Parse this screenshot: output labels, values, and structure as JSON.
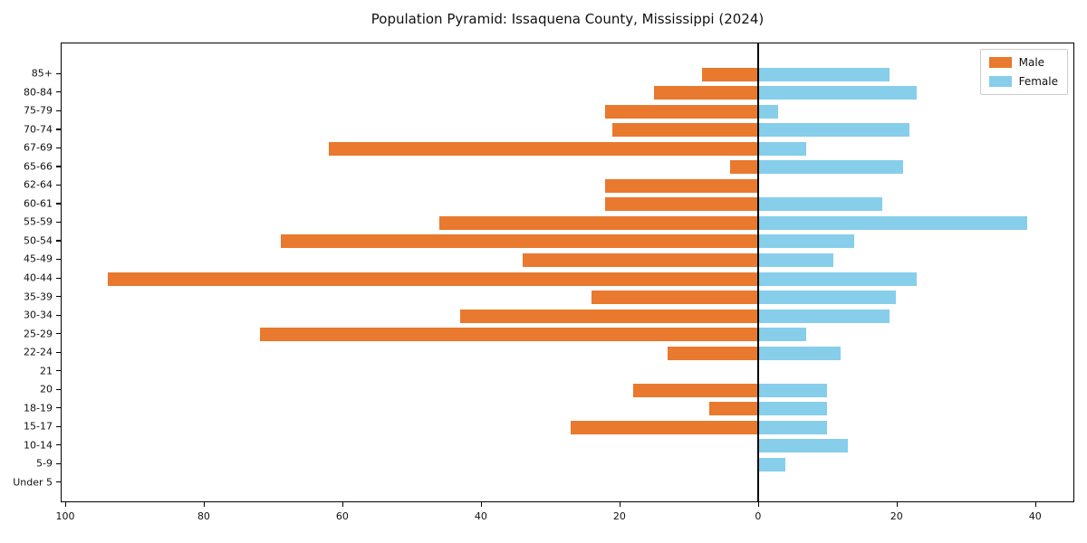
{
  "chart_data": {
    "type": "bar",
    "orientation": "horizontal-pyramid",
    "title": "Population Pyramid: Issaquena County, Mississippi (2024)",
    "categories_top_to_bottom": [
      "85+",
      "80-84",
      "75-79",
      "70-74",
      "67-69",
      "65-66",
      "62-64",
      "60-61",
      "55-59",
      "50-54",
      "45-49",
      "40-44",
      "35-39",
      "30-34",
      "25-29",
      "22-24",
      "21",
      "20",
      "18-19",
      "15-17",
      "10-14",
      "5-9",
      "Under 5"
    ],
    "series": [
      {
        "name": "Male",
        "side": "left",
        "color": "#e8792e",
        "values": [
          8,
          15,
          22,
          21,
          62,
          4,
          22,
          22,
          46,
          69,
          34,
          94,
          24,
          43,
          72,
          13,
          0,
          18,
          7,
          27,
          0,
          0,
          0
        ]
      },
      {
        "name": "Female",
        "side": "right",
        "color": "#87ceeb",
        "values": [
          19,
          23,
          3,
          22,
          7,
          21,
          0,
          18,
          39,
          14,
          11,
          23,
          20,
          19,
          7,
          12,
          0,
          10,
          10,
          10,
          13,
          4,
          0
        ]
      }
    ],
    "xlim": [
      -100.65,
      45.65
    ],
    "x_ticks": [
      -100,
      -80,
      -60,
      -40,
      -20,
      0,
      20,
      40
    ],
    "x_tick_labels": [
      "100",
      "80",
      "60",
      "40",
      "20",
      "0",
      "20",
      "40"
    ],
    "ylabel": "",
    "xlabel": "",
    "grid": false,
    "legend_position": "upper right",
    "spine_color": "#000000",
    "background_color": "#ffffff"
  }
}
